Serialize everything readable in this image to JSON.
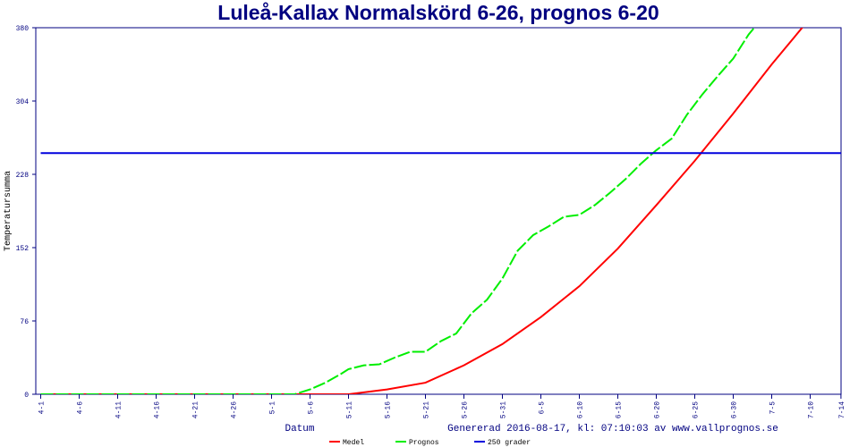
{
  "chart_data": {
    "type": "line",
    "title": "Luleå-Kallax Normalskörd 6-26, prognos 6-20",
    "xlabel": "Datum",
    "ylabel": "Temperatursumma",
    "footer": "Genererad 2016-08-17, kl: 07:10:03 av www.vallprognos.se",
    "ylim": [
      0,
      380
    ],
    "yticks": [
      0,
      76,
      152,
      228,
      304,
      380
    ],
    "xticks": [
      "4-1",
      "4-6",
      "4-11",
      "4-16",
      "4-21",
      "4-26",
      "5-1",
      "5-6",
      "5-11",
      "5-16",
      "5-21",
      "5-26",
      "5-31",
      "6-5",
      "6-10",
      "6-15",
      "6-20",
      "6-25",
      "6-30",
      "7-5",
      "7-10",
      "7-14"
    ],
    "xrange": [
      "4-1",
      "7-14"
    ],
    "grid": false,
    "legend_position": "bottom",
    "series": [
      {
        "name": "Medel",
        "color": "#ff0000",
        "style": "solid",
        "x": [
          "4-1",
          "5-11",
          "5-16",
          "5-21",
          "5-26",
          "5-31",
          "6-5",
          "6-10",
          "6-15",
          "6-20",
          "6-25",
          "6-30",
          "7-5",
          "7-10",
          "7-12"
        ],
        "y": [
          0,
          0,
          5,
          12,
          30,
          52,
          80,
          112,
          151,
          196,
          242,
          291,
          342,
          390,
          405
        ]
      },
      {
        "name": "Prognos",
        "color": "#00ee00",
        "style": "dashed",
        "x": [
          "4-1",
          "5-4",
          "5-6",
          "5-8",
          "5-10",
          "5-11",
          "5-13",
          "5-15",
          "5-17",
          "5-19",
          "5-21",
          "5-23",
          "5-25",
          "5-27",
          "5-29",
          "5-31",
          "6-2",
          "6-4",
          "6-6",
          "6-8",
          "6-10",
          "6-12",
          "6-14",
          "6-16",
          "6-18",
          "6-20",
          "6-22",
          "6-24",
          "6-26",
          "6-28",
          "6-30",
          "7-2",
          "7-4",
          "7-6"
        ],
        "y": [
          0,
          0,
          5,
          12,
          21,
          26,
          30,
          31,
          38,
          44,
          44,
          55,
          63,
          84,
          98,
          120,
          149,
          165,
          174,
          184,
          186,
          196,
          209,
          223,
          239,
          253,
          265,
          290,
          311,
          330,
          348,
          373,
          392,
          410
        ]
      },
      {
        "name": "250 grader",
        "color": "#0000dd",
        "style": "solid",
        "x": [
          "4-1",
          "7-14"
        ],
        "y": [
          250,
          250
        ]
      }
    ]
  }
}
